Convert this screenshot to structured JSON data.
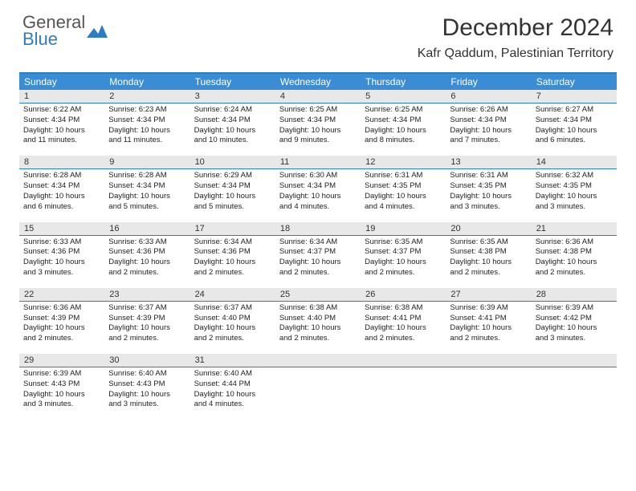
{
  "brand": {
    "line1": "General",
    "line2": "Blue"
  },
  "title": "December 2024",
  "location": "Kafr Qaddum, Palestinian Territory",
  "weekdays": [
    "Sunday",
    "Monday",
    "Tuesday",
    "Wednesday",
    "Thursday",
    "Friday",
    "Saturday"
  ],
  "colors": {
    "header_bar": "#3a8cd4",
    "accent_line": "#2d7dc4",
    "day_number_bg": "#e8e8e8",
    "text": "#222222",
    "brand_gray": "#555555",
    "brand_blue": "#2d7dc4"
  },
  "weeks": [
    [
      {
        "n": "1",
        "sr": "Sunrise: 6:22 AM",
        "ss": "Sunset: 4:34 PM",
        "d1": "Daylight: 10 hours",
        "d2": "and 11 minutes."
      },
      {
        "n": "2",
        "sr": "Sunrise: 6:23 AM",
        "ss": "Sunset: 4:34 PM",
        "d1": "Daylight: 10 hours",
        "d2": "and 11 minutes."
      },
      {
        "n": "3",
        "sr": "Sunrise: 6:24 AM",
        "ss": "Sunset: 4:34 PM",
        "d1": "Daylight: 10 hours",
        "d2": "and 10 minutes."
      },
      {
        "n": "4",
        "sr": "Sunrise: 6:25 AM",
        "ss": "Sunset: 4:34 PM",
        "d1": "Daylight: 10 hours",
        "d2": "and 9 minutes."
      },
      {
        "n": "5",
        "sr": "Sunrise: 6:25 AM",
        "ss": "Sunset: 4:34 PM",
        "d1": "Daylight: 10 hours",
        "d2": "and 8 minutes."
      },
      {
        "n": "6",
        "sr": "Sunrise: 6:26 AM",
        "ss": "Sunset: 4:34 PM",
        "d1": "Daylight: 10 hours",
        "d2": "and 7 minutes."
      },
      {
        "n": "7",
        "sr": "Sunrise: 6:27 AM",
        "ss": "Sunset: 4:34 PM",
        "d1": "Daylight: 10 hours",
        "d2": "and 6 minutes."
      }
    ],
    [
      {
        "n": "8",
        "sr": "Sunrise: 6:28 AM",
        "ss": "Sunset: 4:34 PM",
        "d1": "Daylight: 10 hours",
        "d2": "and 6 minutes."
      },
      {
        "n": "9",
        "sr": "Sunrise: 6:28 AM",
        "ss": "Sunset: 4:34 PM",
        "d1": "Daylight: 10 hours",
        "d2": "and 5 minutes."
      },
      {
        "n": "10",
        "sr": "Sunrise: 6:29 AM",
        "ss": "Sunset: 4:34 PM",
        "d1": "Daylight: 10 hours",
        "d2": "and 5 minutes."
      },
      {
        "n": "11",
        "sr": "Sunrise: 6:30 AM",
        "ss": "Sunset: 4:34 PM",
        "d1": "Daylight: 10 hours",
        "d2": "and 4 minutes."
      },
      {
        "n": "12",
        "sr": "Sunrise: 6:31 AM",
        "ss": "Sunset: 4:35 PM",
        "d1": "Daylight: 10 hours",
        "d2": "and 4 minutes."
      },
      {
        "n": "13",
        "sr": "Sunrise: 6:31 AM",
        "ss": "Sunset: 4:35 PM",
        "d1": "Daylight: 10 hours",
        "d2": "and 3 minutes."
      },
      {
        "n": "14",
        "sr": "Sunrise: 6:32 AM",
        "ss": "Sunset: 4:35 PM",
        "d1": "Daylight: 10 hours",
        "d2": "and 3 minutes."
      }
    ],
    [
      {
        "n": "15",
        "sr": "Sunrise: 6:33 AM",
        "ss": "Sunset: 4:36 PM",
        "d1": "Daylight: 10 hours",
        "d2": "and 3 minutes."
      },
      {
        "n": "16",
        "sr": "Sunrise: 6:33 AM",
        "ss": "Sunset: 4:36 PM",
        "d1": "Daylight: 10 hours",
        "d2": "and 2 minutes."
      },
      {
        "n": "17",
        "sr": "Sunrise: 6:34 AM",
        "ss": "Sunset: 4:36 PM",
        "d1": "Daylight: 10 hours",
        "d2": "and 2 minutes."
      },
      {
        "n": "18",
        "sr": "Sunrise: 6:34 AM",
        "ss": "Sunset: 4:37 PM",
        "d1": "Daylight: 10 hours",
        "d2": "and 2 minutes."
      },
      {
        "n": "19",
        "sr": "Sunrise: 6:35 AM",
        "ss": "Sunset: 4:37 PM",
        "d1": "Daylight: 10 hours",
        "d2": "and 2 minutes."
      },
      {
        "n": "20",
        "sr": "Sunrise: 6:35 AM",
        "ss": "Sunset: 4:38 PM",
        "d1": "Daylight: 10 hours",
        "d2": "and 2 minutes."
      },
      {
        "n": "21",
        "sr": "Sunrise: 6:36 AM",
        "ss": "Sunset: 4:38 PM",
        "d1": "Daylight: 10 hours",
        "d2": "and 2 minutes."
      }
    ],
    [
      {
        "n": "22",
        "sr": "Sunrise: 6:36 AM",
        "ss": "Sunset: 4:39 PM",
        "d1": "Daylight: 10 hours",
        "d2": "and 2 minutes."
      },
      {
        "n": "23",
        "sr": "Sunrise: 6:37 AM",
        "ss": "Sunset: 4:39 PM",
        "d1": "Daylight: 10 hours",
        "d2": "and 2 minutes."
      },
      {
        "n": "24",
        "sr": "Sunrise: 6:37 AM",
        "ss": "Sunset: 4:40 PM",
        "d1": "Daylight: 10 hours",
        "d2": "and 2 minutes."
      },
      {
        "n": "25",
        "sr": "Sunrise: 6:38 AM",
        "ss": "Sunset: 4:40 PM",
        "d1": "Daylight: 10 hours",
        "d2": "and 2 minutes."
      },
      {
        "n": "26",
        "sr": "Sunrise: 6:38 AM",
        "ss": "Sunset: 4:41 PM",
        "d1": "Daylight: 10 hours",
        "d2": "and 2 minutes."
      },
      {
        "n": "27",
        "sr": "Sunrise: 6:39 AM",
        "ss": "Sunset: 4:41 PM",
        "d1": "Daylight: 10 hours",
        "d2": "and 2 minutes."
      },
      {
        "n": "28",
        "sr": "Sunrise: 6:39 AM",
        "ss": "Sunset: 4:42 PM",
        "d1": "Daylight: 10 hours",
        "d2": "and 3 minutes."
      }
    ],
    [
      {
        "n": "29",
        "sr": "Sunrise: 6:39 AM",
        "ss": "Sunset: 4:43 PM",
        "d1": "Daylight: 10 hours",
        "d2": "and 3 minutes."
      },
      {
        "n": "30",
        "sr": "Sunrise: 6:40 AM",
        "ss": "Sunset: 4:43 PM",
        "d1": "Daylight: 10 hours",
        "d2": "and 3 minutes."
      },
      {
        "n": "31",
        "sr": "Sunrise: 6:40 AM",
        "ss": "Sunset: 4:44 PM",
        "d1": "Daylight: 10 hours",
        "d2": "and 4 minutes."
      },
      {
        "empty": true
      },
      {
        "empty": true
      },
      {
        "empty": true
      },
      {
        "empty": true
      }
    ]
  ]
}
